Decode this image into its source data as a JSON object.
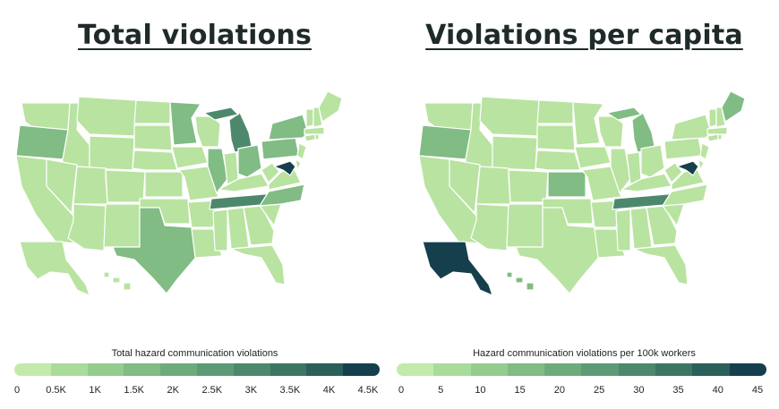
{
  "panels": [
    {
      "title": "Total violations",
      "legend_title": "Total hazard communication violations",
      "ticks": [
        "0",
        "0.5K",
        "1K",
        "1.5K",
        "2K",
        "2.5K",
        "3K",
        "3.5K",
        "4K",
        "4.5K"
      ],
      "highlights": {
        "darkest": [
          "Maryland"
        ],
        "dark": [
          "Tennessee",
          "Michigan"
        ],
        "medium": [
          "Oregon",
          "Texas",
          "Illinois",
          "North Carolina",
          "Pennsylvania",
          "New York",
          "Minnesota",
          "Ohio"
        ]
      }
    },
    {
      "title": "Violations per capita",
      "legend_title": "Hazard communication violations per 100k workers",
      "ticks": [
        "0",
        "5",
        "10",
        "15",
        "20",
        "25",
        "30",
        "35",
        "40",
        "45"
      ],
      "highlights": {
        "darkest": [
          "Alaska",
          "Maryland"
        ],
        "dark": [
          "Tennessee"
        ],
        "medium": [
          "Oregon",
          "Kansas",
          "Hawaii",
          "Michigan",
          "Maine"
        ]
      }
    }
  ],
  "colors": {
    "scale": [
      "#c4eaa9",
      "#a9dc9b",
      "#94cc8e",
      "#80bc84",
      "#6eab7c",
      "#5d9a75",
      "#4d886d",
      "#3d7564",
      "#2b5f5a",
      "#163f4d"
    ]
  }
}
